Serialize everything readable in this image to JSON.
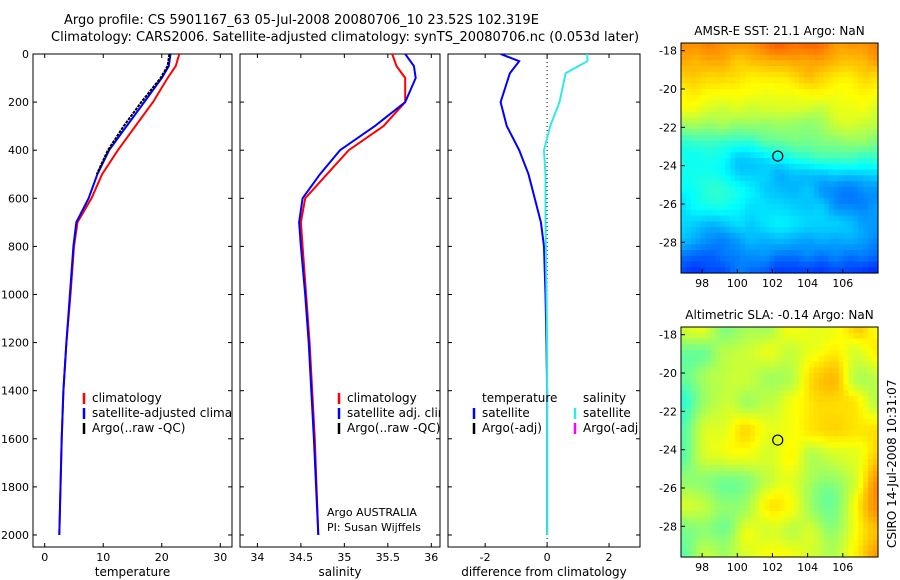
{
  "header": {
    "line1": "Argo profile: CS 5901167_63 05-Jul-2008 20080706_10 23.52S 102.319E",
    "line2": "Climatology: CARS2006. Satellite-adjusted climatology: synTS_20080706.nc (0.053d later)"
  },
  "side_label": "CSIRO 14-Jul-2008 10:31:07",
  "colors": {
    "climatology": "#ff0000",
    "satellite": "#0000ff",
    "argo": "#000000",
    "satellite_salinity": "#33e8e8",
    "argo_salinity": "#ff00ff"
  },
  "chart_data": [
    {
      "type": "line",
      "xlabel": "temperature",
      "xlim": [
        -2,
        32
      ],
      "ylim": [
        2050,
        0
      ],
      "xticks": [
        "0",
        "10",
        "20",
        "30"
      ],
      "yticks": [
        "0",
        "200",
        "400",
        "600",
        "800",
        "1000",
        "1200",
        "1400",
        "1600",
        "1800",
        "2000"
      ],
      "legend_placement": "lower-middle",
      "series": [
        {
          "name": "climatology",
          "color_key": "climatology",
          "x": [
            23.0,
            22.4,
            21.0,
            18.5,
            15.5,
            12.5,
            9.8,
            8.0,
            5.6,
            5.0,
            4.4,
            3.7,
            3.2,
            2.9,
            2.5
          ],
          "y": [
            0,
            50,
            100,
            200,
            300,
            400,
            500,
            600,
            700,
            800,
            1000,
            1200,
            1400,
            1600,
            2000
          ]
        },
        {
          "name": "satellite-adjusted climatology",
          "color_key": "satellite",
          "x": [
            21.5,
            21.2,
            20.0,
            17.0,
            14.0,
            11.0,
            9.0,
            7.5,
            5.4,
            4.9,
            4.3,
            3.7,
            3.2,
            2.9,
            2.5
          ],
          "y": [
            0,
            50,
            100,
            200,
            300,
            400,
            500,
            600,
            700,
            800,
            1000,
            1200,
            1400,
            1600,
            2000
          ]
        },
        {
          "name": "Argo(..raw -QC)",
          "color_key": "argo",
          "x": [
            21.3,
            21.0,
            19.8,
            16.5,
            13.5,
            10.8,
            8.9
          ],
          "y": [
            0,
            50,
            100,
            200,
            300,
            400,
            500
          ]
        }
      ]
    },
    {
      "type": "line",
      "xlabel": "salinity",
      "xlim": [
        33.8,
        36.1
      ],
      "ylim": [
        2050,
        0
      ],
      "xticks": [
        "34",
        "34.5",
        "35",
        "35.5",
        "36"
      ],
      "legend_placement": "lower-middle",
      "annotation": [
        "Argo AUSTRALIA",
        "PI: Susan Wijffels"
      ],
      "series": [
        {
          "name": "climatology",
          "color_key": "climatology",
          "x": [
            35.55,
            35.6,
            35.7,
            35.7,
            35.45,
            35.05,
            34.8,
            34.55,
            34.5,
            34.52,
            34.56,
            34.6,
            34.63,
            34.66,
            34.7
          ],
          "y": [
            0,
            50,
            100,
            200,
            300,
            400,
            500,
            600,
            700,
            800,
            1000,
            1200,
            1400,
            1600,
            2000
          ]
        },
        {
          "name": "satellite adj. clim.",
          "color_key": "satellite",
          "x": [
            35.7,
            35.8,
            35.82,
            35.7,
            35.35,
            34.95,
            34.72,
            34.52,
            34.48,
            34.5,
            34.55,
            34.59,
            34.62,
            34.65,
            34.7
          ],
          "y": [
            0,
            50,
            100,
            200,
            300,
            400,
            500,
            600,
            700,
            800,
            1000,
            1200,
            1400,
            1600,
            2000
          ]
        }
      ],
      "legend": [
        {
          "name": "climatology",
          "color_key": "climatology"
        },
        {
          "name": "satellite adj. clim.",
          "color_key": "satellite"
        },
        {
          "name": "Argo(..raw -QC)",
          "color_key": "argo"
        }
      ]
    },
    {
      "type": "line",
      "xlabel": "difference from climatology",
      "xlim": [
        -3.2,
        3.0
      ],
      "ylim": [
        2050,
        0
      ],
      "xticks": [
        "-2",
        "0",
        "2"
      ],
      "legend_placement": "lower-middle",
      "series": [
        {
          "name": "temperature satellite",
          "color_key": "satellite",
          "x": [
            -1.5,
            -0.9,
            -1.2,
            -1.5,
            -1.3,
            -0.9,
            -0.6,
            -0.4,
            -0.2,
            -0.1,
            -0.05,
            -0.02,
            0.0,
            0.0
          ],
          "y": [
            0,
            30,
            80,
            200,
            300,
            400,
            500,
            600,
            700,
            800,
            1000,
            1200,
            1400,
            2000
          ]
        },
        {
          "name": "salinity satellite",
          "color_key": "satellite_salinity",
          "x": [
            1.3,
            1.3,
            0.6,
            0.4,
            0.1,
            -0.1,
            -0.05,
            -0.05,
            -0.03,
            0.0,
            0.0,
            0.0
          ],
          "y": [
            0,
            30,
            80,
            200,
            300,
            400,
            500,
            700,
            900,
            1200,
            1600,
            2000
          ]
        }
      ],
      "legend": [
        {
          "name": "temperature",
          "color_key": null
        },
        {
          "name": "satellite",
          "color_key": "satellite"
        },
        {
          "name": "Argo(-adj)",
          "color_key": "argo"
        },
        {
          "name": "salinity",
          "color_key": null
        },
        {
          "name": "satellite",
          "color_key": "satellite_salinity"
        },
        {
          "name": "Argo(-adj)",
          "color_key": "argo_salinity"
        }
      ]
    },
    {
      "type": "heatmap",
      "title": "AMSR-E SST: 21.1 Argo: NaN",
      "xlim": [
        96.8,
        108
      ],
      "ylim": [
        -29.6,
        -17.6
      ],
      "xticks": [
        "98",
        "100",
        "102",
        "104",
        "106"
      ],
      "yticks": [
        "-18",
        "-20",
        "-22",
        "-24",
        "-26",
        "-28"
      ],
      "marker": {
        "x": 102.3,
        "y": -23.5
      }
    },
    {
      "type": "heatmap",
      "title": "Altimetric SLA: -0.14 Argo: NaN",
      "xlim": [
        96.8,
        108
      ],
      "ylim": [
        -29.6,
        -17.6
      ],
      "xticks": [
        "98",
        "100",
        "102",
        "104",
        "106"
      ],
      "yticks": [
        "-18",
        "-20",
        "-22",
        "-24",
        "-26",
        "-28"
      ],
      "marker": {
        "x": 102.3,
        "y": -23.5
      }
    }
  ]
}
